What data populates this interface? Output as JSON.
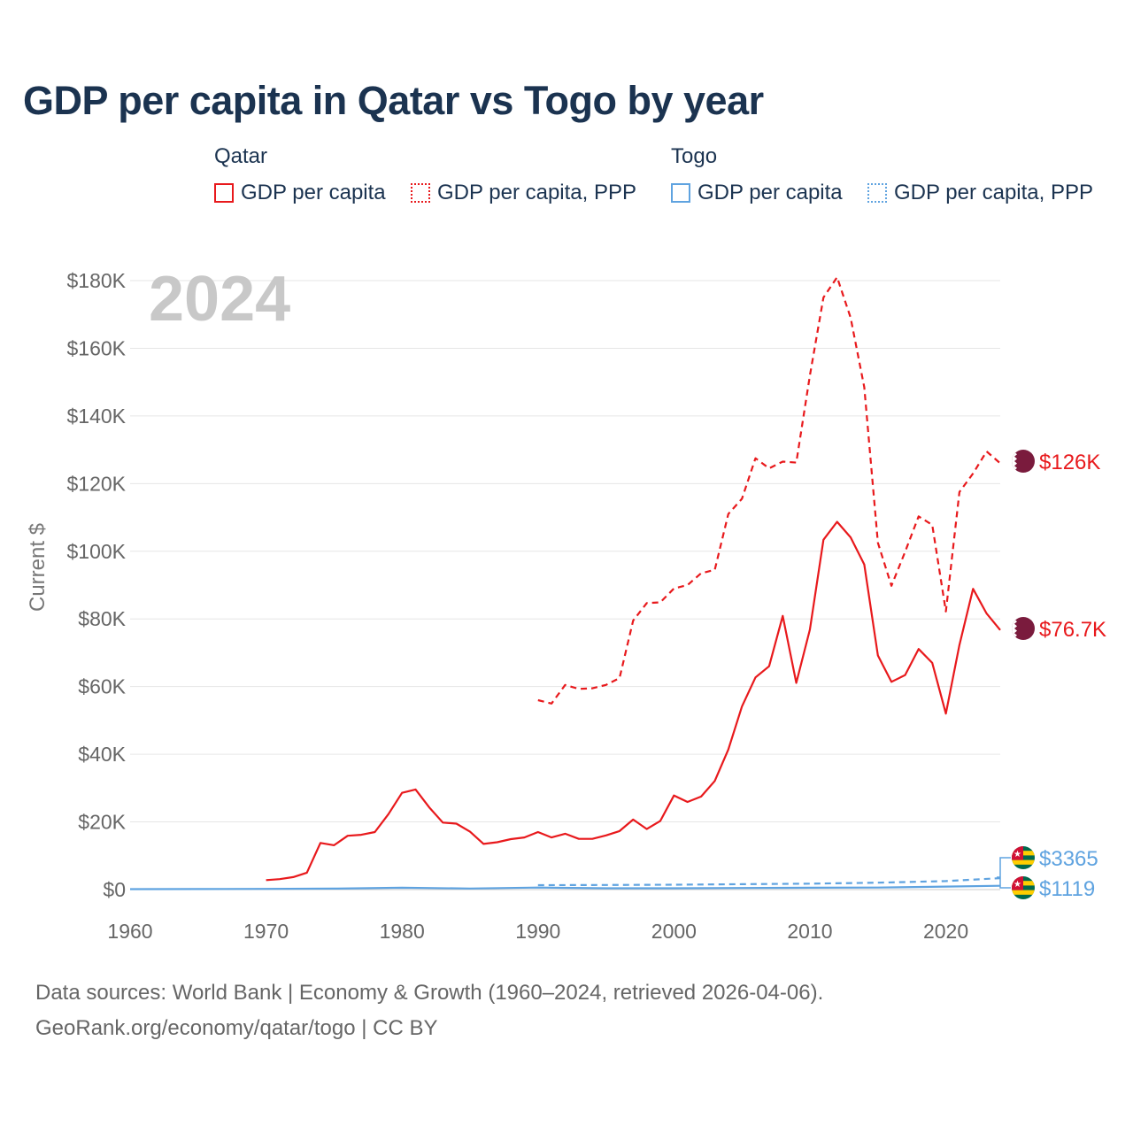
{
  "title": "GDP per capita in Qatar vs Togo by year",
  "legend": {
    "groups": [
      {
        "name": "Qatar",
        "items": [
          "GDP per capita",
          "GDP per capita, PPP"
        ]
      },
      {
        "name": "Togo",
        "items": [
          "GDP per capita",
          "GDP per capita, PPP"
        ]
      }
    ]
  },
  "colors": {
    "qatar": "#e8191c",
    "togo": "#5fa3e0",
    "grid": "#e6e6e6",
    "qatar_flag": "#7a1b3d"
  },
  "footer": {
    "line1": "Data sources: World Bank | Economy & Growth (1960–2024, retrieved 2026-04-06).",
    "line2": "GeoRank.org/economy/qatar/togo | CC BY"
  },
  "chart_data": {
    "type": "line",
    "year_watermark": "2024",
    "ylabel": "Current $",
    "xlabel": "",
    "xlim": [
      1960,
      2024
    ],
    "ylim": [
      0,
      180000
    ],
    "x_ticks": [
      1960,
      1970,
      1980,
      1990,
      2000,
      2010,
      2020
    ],
    "x_tick_labels": [
      "1960",
      "1970",
      "1980",
      "1990",
      "2000",
      "2010",
      "2020"
    ],
    "y_ticks": [
      0,
      20000,
      40000,
      60000,
      80000,
      100000,
      120000,
      140000,
      160000,
      180000
    ],
    "y_tick_labels": [
      "$0",
      "$20K",
      "$40K",
      "$60K",
      "$80K",
      "$100K",
      "$120K",
      "$140K",
      "$160K",
      "$180K"
    ],
    "grid": true,
    "series": [
      {
        "name": "Qatar GDP per capita",
        "country": "qatar",
        "style": "solid",
        "end_label": "$76.7K",
        "x": [
          1970,
          1971,
          1972,
          1973,
          1974,
          1975,
          1976,
          1977,
          1978,
          1979,
          1980,
          1981,
          1982,
          1983,
          1984,
          1985,
          1986,
          1987,
          1988,
          1989,
          1990,
          1991,
          1992,
          1993,
          1994,
          1995,
          1996,
          1997,
          1998,
          1999,
          2000,
          2001,
          2002,
          2003,
          2004,
          2005,
          2006,
          2007,
          2008,
          2009,
          2010,
          2011,
          2012,
          2013,
          2014,
          2015,
          2016,
          2017,
          2018,
          2019,
          2020,
          2021,
          2022,
          2023,
          2024
        ],
        "values": [
          2800,
          3100,
          3700,
          5000,
          13800,
          13100,
          15900,
          16200,
          17000,
          22300,
          28600,
          29600,
          24300,
          19800,
          19500,
          17100,
          13500,
          14000,
          14900,
          15400,
          17000,
          15400,
          16500,
          15000,
          15000,
          16000,
          17300,
          20700,
          17900,
          20300,
          27800,
          25900,
          27500,
          32100,
          41400,
          54100,
          62700,
          66000,
          80900,
          61100,
          76900,
          103400,
          108700,
          104100,
          96100,
          69200,
          61400,
          63400,
          71100,
          67000,
          52000,
          72300,
          88900,
          81600,
          76700
        ]
      },
      {
        "name": "Qatar GDP per capita, PPP",
        "country": "qatar",
        "style": "dashed",
        "end_label": "$126K",
        "x": [
          1990,
          1991,
          1992,
          1993,
          1994,
          1995,
          1996,
          1997,
          1998,
          1999,
          2000,
          2001,
          2002,
          2003,
          2004,
          2005,
          2006,
          2007,
          2008,
          2009,
          2010,
          2011,
          2012,
          2013,
          2014,
          2015,
          2016,
          2017,
          2018,
          2019,
          2020,
          2021,
          2022,
          2023,
          2024
        ],
        "values": [
          56000,
          55000,
          60500,
          59300,
          59500,
          60500,
          62500,
          79500,
          84700,
          84900,
          89000,
          90000,
          93500,
          94500,
          111000,
          115500,
          127500,
          124500,
          126500,
          126200,
          152000,
          175000,
          181000,
          169000,
          148500,
          102500,
          89800,
          99800,
          110300,
          107800,
          82200,
          117500,
          123000,
          129500,
          126000
        ]
      },
      {
        "name": "Togo GDP per capita",
        "country": "togo",
        "style": "solid",
        "end_label": "$1119",
        "x": [
          1960,
          1965,
          1970,
          1975,
          1980,
          1985,
          1990,
          1995,
          2000,
          2005,
          2010,
          2015,
          2020,
          2024
        ],
        "values": [
          120,
          160,
          200,
          300,
          550,
          320,
          600,
          400,
          400,
          480,
          560,
          600,
          880,
          1119
        ]
      },
      {
        "name": "Togo GDP per capita, PPP",
        "country": "togo",
        "style": "dashed",
        "end_label": "$3365",
        "x": [
          1990,
          1995,
          2000,
          2005,
          2010,
          2015,
          2020,
          2024
        ],
        "values": [
          1300,
          1350,
          1450,
          1600,
          1750,
          2050,
          2500,
          3365
        ]
      }
    ]
  }
}
